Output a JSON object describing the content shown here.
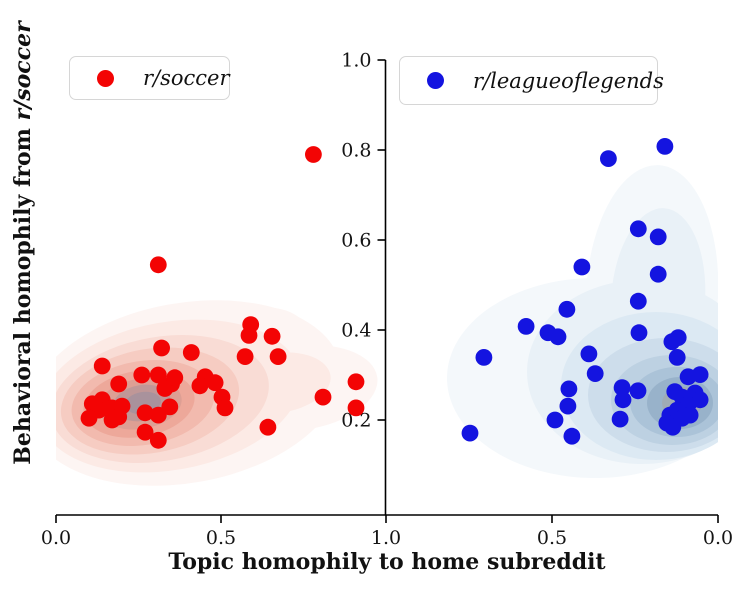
{
  "chart_data": {
    "type": "scatter",
    "title": "",
    "xlabel": "Topic homophily to home subreddit",
    "ylabel": {
      "text": "Behavioral homophily from ",
      "italic_suffix": "r/soccer"
    },
    "grid": false,
    "y_axis": {
      "min": 0.0,
      "max": 1.0,
      "ticks": [
        0.2,
        0.4,
        0.6,
        0.8,
        1.0
      ],
      "tick_labels": [
        "0.2",
        "0.4",
        "0.6",
        "0.8",
        "1.0"
      ],
      "position": "center-shared"
    },
    "x_axis": {
      "layout": "mirrored-panels",
      "left_panel": {
        "min": 0.0,
        "max": 1.0,
        "ticks": [
          0.0,
          0.5,
          1.0
        ],
        "tick_labels": [
          "0.0",
          "0.5",
          "1.0"
        ]
      },
      "right_panel": {
        "min": 0.0,
        "max": 1.0,
        "reversed": true,
        "ticks": [
          0.5,
          0.0
        ],
        "tick_labels": [
          "0.5",
          "0.0"
        ]
      }
    },
    "legend_position": "upper-left-of-each-panel",
    "density_overlay": true,
    "density_levels": {
      "red": [
        "#fdf5f3",
        "#fceae5",
        "#f9dcd5",
        "#f6ccc2",
        "#f2baae",
        "#eda89a",
        "#dd9f94",
        "#c09797",
        "#a9929c"
      ],
      "blue": [
        "#f4f8fb",
        "#e9f1f7",
        "#dce9f3",
        "#cdddeb",
        "#bdd1e2",
        "#abc3d8",
        "#98b2ca",
        "#9fabb5"
      ]
    },
    "series": [
      {
        "name": "r/soccer",
        "panel": "left",
        "color": "#f30404",
        "points": [
          [
            0.78,
            0.79
          ],
          [
            0.31,
            0.545
          ],
          [
            0.32,
            0.36
          ],
          [
            0.41,
            0.35
          ],
          [
            0.14,
            0.32
          ],
          [
            0.26,
            0.3
          ],
          [
            0.31,
            0.3
          ],
          [
            0.19,
            0.28
          ],
          [
            0.35,
            0.28
          ],
          [
            0.33,
            0.27
          ],
          [
            0.14,
            0.245
          ],
          [
            0.11,
            0.236
          ],
          [
            0.13,
            0.222
          ],
          [
            0.17,
            0.227
          ],
          [
            0.2,
            0.231
          ],
          [
            0.1,
            0.204
          ],
          [
            0.17,
            0.2
          ],
          [
            0.19,
            0.207
          ],
          [
            0.27,
            0.216
          ],
          [
            0.31,
            0.211
          ],
          [
            0.345,
            0.229
          ],
          [
            0.27,
            0.173
          ],
          [
            0.31,
            0.155
          ],
          [
            0.59,
            0.412
          ],
          [
            0.585,
            0.388
          ],
          [
            0.655,
            0.386
          ],
          [
            0.573,
            0.341
          ],
          [
            0.673,
            0.341
          ],
          [
            0.452,
            0.296
          ],
          [
            0.482,
            0.283
          ],
          [
            0.436,
            0.276
          ],
          [
            0.503,
            0.251
          ],
          [
            0.512,
            0.227
          ],
          [
            0.36,
            0.294
          ],
          [
            0.642,
            0.184
          ],
          [
            0.809,
            0.251
          ],
          [
            0.909,
            0.285
          ],
          [
            0.909,
            0.227
          ]
        ]
      },
      {
        "name": "r/leagueoflegends",
        "panel": "right",
        "color": "#1414e0",
        "points": [
          [
            0.16,
            0.808
          ],
          [
            0.33,
            0.781
          ],
          [
            0.24,
            0.625
          ],
          [
            0.18,
            0.607
          ],
          [
            0.41,
            0.54
          ],
          [
            0.18,
            0.524
          ],
          [
            0.24,
            0.464
          ],
          [
            0.455,
            0.446
          ],
          [
            0.578,
            0.408
          ],
          [
            0.512,
            0.394
          ],
          [
            0.482,
            0.385
          ],
          [
            0.705,
            0.339
          ],
          [
            0.389,
            0.347
          ],
          [
            0.37,
            0.303
          ],
          [
            0.449,
            0.269
          ],
          [
            0.452,
            0.231
          ],
          [
            0.491,
            0.2
          ],
          [
            0.44,
            0.164
          ],
          [
            0.747,
            0.171
          ],
          [
            0.238,
            0.394
          ],
          [
            0.12,
            0.383
          ],
          [
            0.139,
            0.374
          ],
          [
            0.123,
            0.339
          ],
          [
            0.09,
            0.296
          ],
          [
            0.054,
            0.301
          ],
          [
            0.241,
            0.265
          ],
          [
            0.289,
            0.272
          ],
          [
            0.286,
            0.245
          ],
          [
            0.295,
            0.202
          ],
          [
            0.13,
            0.263
          ],
          [
            0.108,
            0.251
          ],
          [
            0.069,
            0.26
          ],
          [
            0.054,
            0.245
          ],
          [
            0.09,
            0.234
          ],
          [
            0.123,
            0.222
          ],
          [
            0.145,
            0.211
          ],
          [
            0.108,
            0.204
          ],
          [
            0.084,
            0.211
          ],
          [
            0.154,
            0.193
          ],
          [
            0.136,
            0.184
          ]
        ]
      }
    ]
  }
}
